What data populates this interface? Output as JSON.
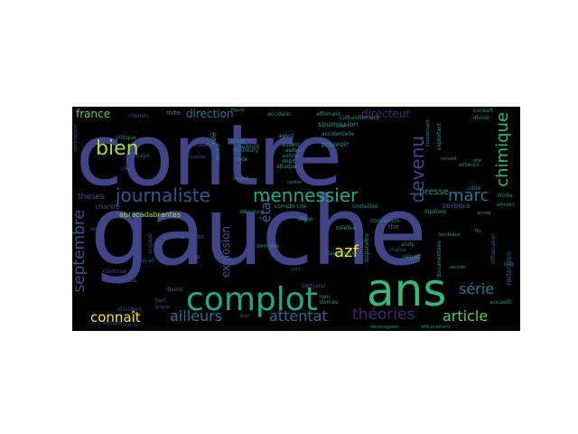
{
  "cloud": {
    "words": {
      "contre": "contre",
      "gauche": "gauche",
      "ans": "ans",
      "complot": "complot",
      "journaliste": "journaliste",
      "mennessier": "mennessier",
      "marc": "marc",
      "bien": "bien",
      "devenu": "devenu",
      "chimique": "chimique",
      "septembre": "septembre",
      "serie": "série",
      "theories": "théories",
      "attentat": "attentat",
      "ailleurs": "ailleurs",
      "article": "article",
      "connait": "connaît",
      "azf": "azf",
      "france": "france",
      "direction": "direction",
      "directeur": "directeur",
      "explosion": "explosion",
      "etat": "état",
      "presse": "presse",
      "theses": "thèses",
      "journalistes": "journalistes",
      "pouvoir": "pouvoir",
      "soumission": "soumission",
      "abracadabrantes": "abracadabrantes",
      "chantre": "chantre",
      "accident": "accident",
      "affirmant": "affirmant",
      "accidentelle": "accidentelle",
      "culturellement": "culturellement",
      "critique": "critique",
      "chemin": "chemin",
      "mite": "mite",
      "serbera": "serbera",
      "redaction": "rédaction",
      "aucuns": "aucuns",
      "doute": "doute",
      "disent": "disent",
      "bertrand": "bertrand",
      "claveciniste": "claveciniste",
      "chaine": "chaîne",
      "diffamation": "diffamation",
      "accueilli": "accueilli",
      "the": "the",
      "non": "non",
      "digne": "digne",
      "celebre": "célèbre",
      "diplome": "diplômé",
      "depart": "départ",
      "ancien": "ancien",
      "autant": "autant",
      "attaque": "attaque",
      "cristallise": "cristallisé",
      "denonce": "dénonce",
      "derniere": "dernière",
      "convaincre": "convaincre",
      "auteur": "auteur",
      "acteurs": "acteurs",
      "cible": "ciblé",
      "disait": "disait",
      "dichoury": "duchoury",
      "agent": "agent",
      "aujourd": "aujourd",
      "cede": "cédé",
      "depit": "dépit",
      "depot": "dépôt",
      "dissident": "dissident",
      "bart": "bart",
      "continue": "continue",
      "adhere": "adhérait",
      "condamne": "condamné",
      "compte": "compte cité",
      "andy": "andy",
      "consultant": "consult",
      "divise": "divisé",
      "droite": "droite",
      "cote": "côté",
      "chef": "chef",
      "coq": "coq",
      "contredit": "contredit",
      "cour": "cour",
      "bord": "bord",
      "cahier": "cahier",
      "aucune": "aucune",
      "direct": "direct",
      "denier": "deniau",
      "autour": "autour",
      "disparaitre": "disparaître",
      "ancet": "accueil",
      "camp": "campagne",
      "figure": "figure",
      "bien2": "bien",
      "dermot": "défenseur",
      "efficacement": "efficacement",
      "developpees": "développées",
      "exploitant": "exploitant",
      "exploration": "explorations",
      "consternant": "consternant",
      "explique": "explique",
      "documentaire": "documentaire",
      "cnrs": "cnrs",
      "chicago": "chicago",
      "elle": "elle",
      "eux": "eux",
      "attribue": "attribué",
      "fils": "fils",
      "centre": "centre",
      "debat": "débat",
      "croient": "croient",
      "conseil": "conseil",
      "denoncer": "dénoncer",
      "affaire": "affaire",
      "tele": "télé",
      "engage": "engagé",
      "bordeaux": "bordeaux",
      "fausse": "fausse",
      "fin": "fin",
      "conclu": "conclu",
      "demande": "demande",
      "desormais": "désormais",
      "bref": "bref",
      "brigue": "brigue",
      "annee": "année",
      "dernier": "dernier"
    },
    "colors": {
      "background": "#000000",
      "purple_blue": "#414487",
      "dark_purple": "#440154",
      "deep_purple": "#482475",
      "blue": "#3b528b",
      "steel_blue": "#31688e",
      "teal": "#21918c",
      "blue_teal": "#2c728e",
      "green": "#35b779",
      "light_green": "#5ec962",
      "lime": "#a5db36",
      "yellow": "#fde725",
      "sea_green": "#22a884"
    }
  }
}
